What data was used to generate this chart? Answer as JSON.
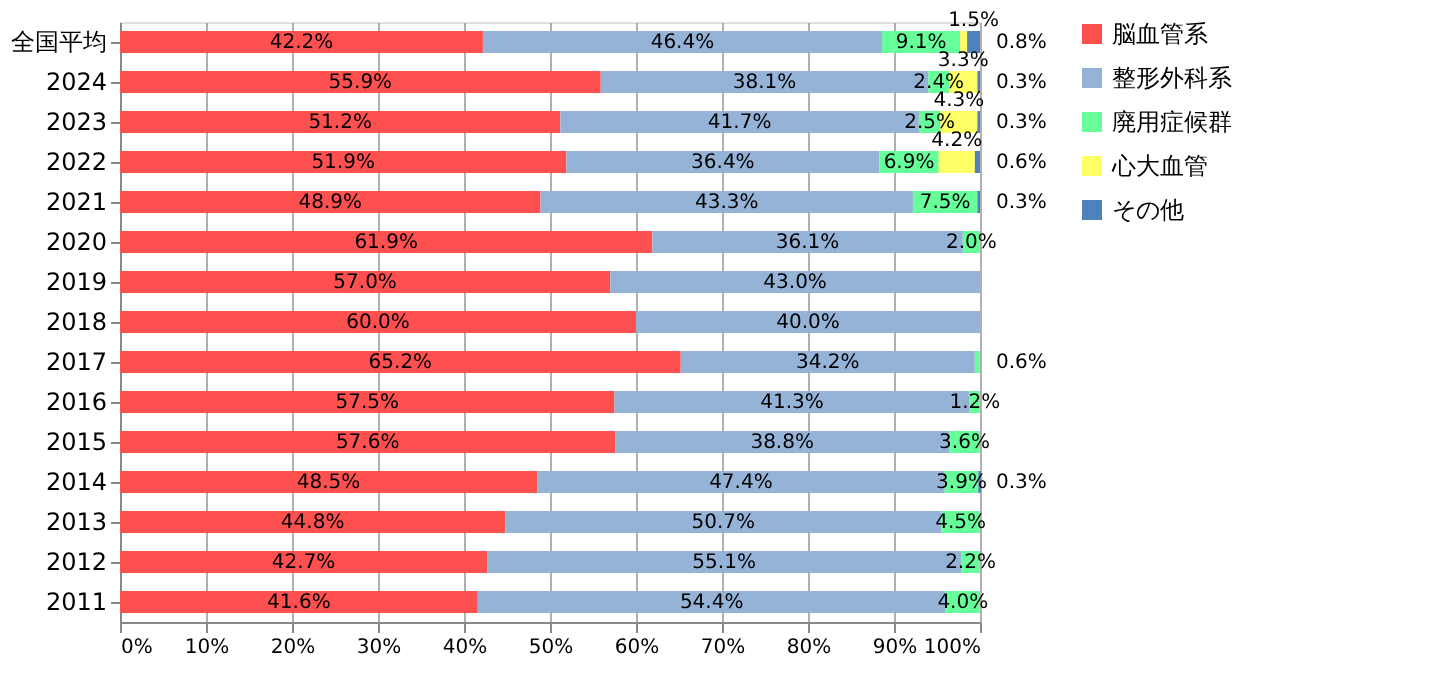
{
  "chart_data": {
    "type": "bar",
    "orientation": "horizontal",
    "stacked": true,
    "categories": [
      "全国平均",
      "2024",
      "2023",
      "2022",
      "2021",
      "2020",
      "2019",
      "2018",
      "2017",
      "2016",
      "2015",
      "2014",
      "2013",
      "2012",
      "2011"
    ],
    "series": [
      {
        "name": "脳血管系",
        "color": "#ff5050",
        "values": [
          42.2,
          55.9,
          51.2,
          51.9,
          48.9,
          61.9,
          57.0,
          60.0,
          65.2,
          57.5,
          57.6,
          48.5,
          44.8,
          42.7,
          41.6
        ],
        "value_labels": [
          "42.2%",
          "55.9%",
          "51.2%",
          "51.9%",
          "48.9%",
          "61.9%",
          "57.0%",
          "60.0%",
          "65.2%",
          "57.5%",
          "57.6%",
          "48.5%",
          "44.8%",
          "42.7%",
          "41.6%"
        ]
      },
      {
        "name": "整形外科系",
        "color": "#95b3d7",
        "values": [
          46.4,
          38.1,
          41.7,
          36.4,
          43.3,
          36.1,
          43.0,
          40.0,
          34.2,
          41.3,
          38.8,
          47.4,
          50.7,
          55.1,
          54.4
        ],
        "value_labels": [
          "46.4%",
          "38.1%",
          "41.7%",
          "36.4%",
          "43.3%",
          "36.1%",
          "43.0%",
          "40.0%",
          "34.2%",
          "41.3%",
          "38.8%",
          "47.4%",
          "50.7%",
          "55.1%",
          "54.4%"
        ]
      },
      {
        "name": "廃用症候群",
        "color": "#66ff99",
        "values": [
          9.1,
          2.4,
          2.5,
          6.9,
          7.5,
          2.0,
          null,
          null,
          0.6,
          1.2,
          3.6,
          3.9,
          4.5,
          2.2,
          4.0
        ],
        "value_labels": [
          "9.1%",
          "2.4%",
          "2.5%",
          "6.9%",
          "7.5%",
          "2.0%",
          null,
          null,
          "0.6%",
          "1.2%",
          "3.6%",
          "3.9%",
          "4.5%",
          "2.2%",
          "4.0%"
        ]
      },
      {
        "name": "心大血管",
        "color": "#ffff66",
        "values": [
          0.8,
          3.3,
          4.3,
          4.2,
          null,
          null,
          null,
          null,
          null,
          null,
          null,
          null,
          null,
          null,
          null
        ],
        "value_labels": [
          "0.8%",
          "3.3%",
          "4.3%",
          "4.2%",
          null,
          null,
          null,
          null,
          null,
          null,
          null,
          null,
          null,
          null,
          null
        ]
      },
      {
        "name": "その他",
        "color": "#4f81bd",
        "values": [
          1.5,
          0.3,
          0.3,
          0.6,
          0.3,
          null,
          null,
          null,
          null,
          null,
          null,
          0.3,
          null,
          null,
          null
        ],
        "value_labels": [
          "1.5%",
          "0.3%",
          "0.3%",
          "0.6%",
          "0.3%",
          null,
          null,
          null,
          null,
          null,
          null,
          "0.3%",
          null,
          null,
          null
        ]
      }
    ],
    "xlim": [
      0,
      100
    ],
    "xticks": [
      {
        "value": 0,
        "label": "0%"
      },
      {
        "value": 10,
        "label": "10%"
      },
      {
        "value": 20,
        "label": "20%"
      },
      {
        "value": 30,
        "label": "30%"
      },
      {
        "value": 40,
        "label": "40%"
      },
      {
        "value": 50,
        "label": "50%"
      },
      {
        "value": 60,
        "label": "60%"
      },
      {
        "value": 70,
        "label": "70%"
      },
      {
        "value": 80,
        "label": "80%"
      },
      {
        "value": 90,
        "label": "90%"
      },
      {
        "value": 100,
        "label": "100%"
      }
    ],
    "grid": "x",
    "legend": "right"
  }
}
